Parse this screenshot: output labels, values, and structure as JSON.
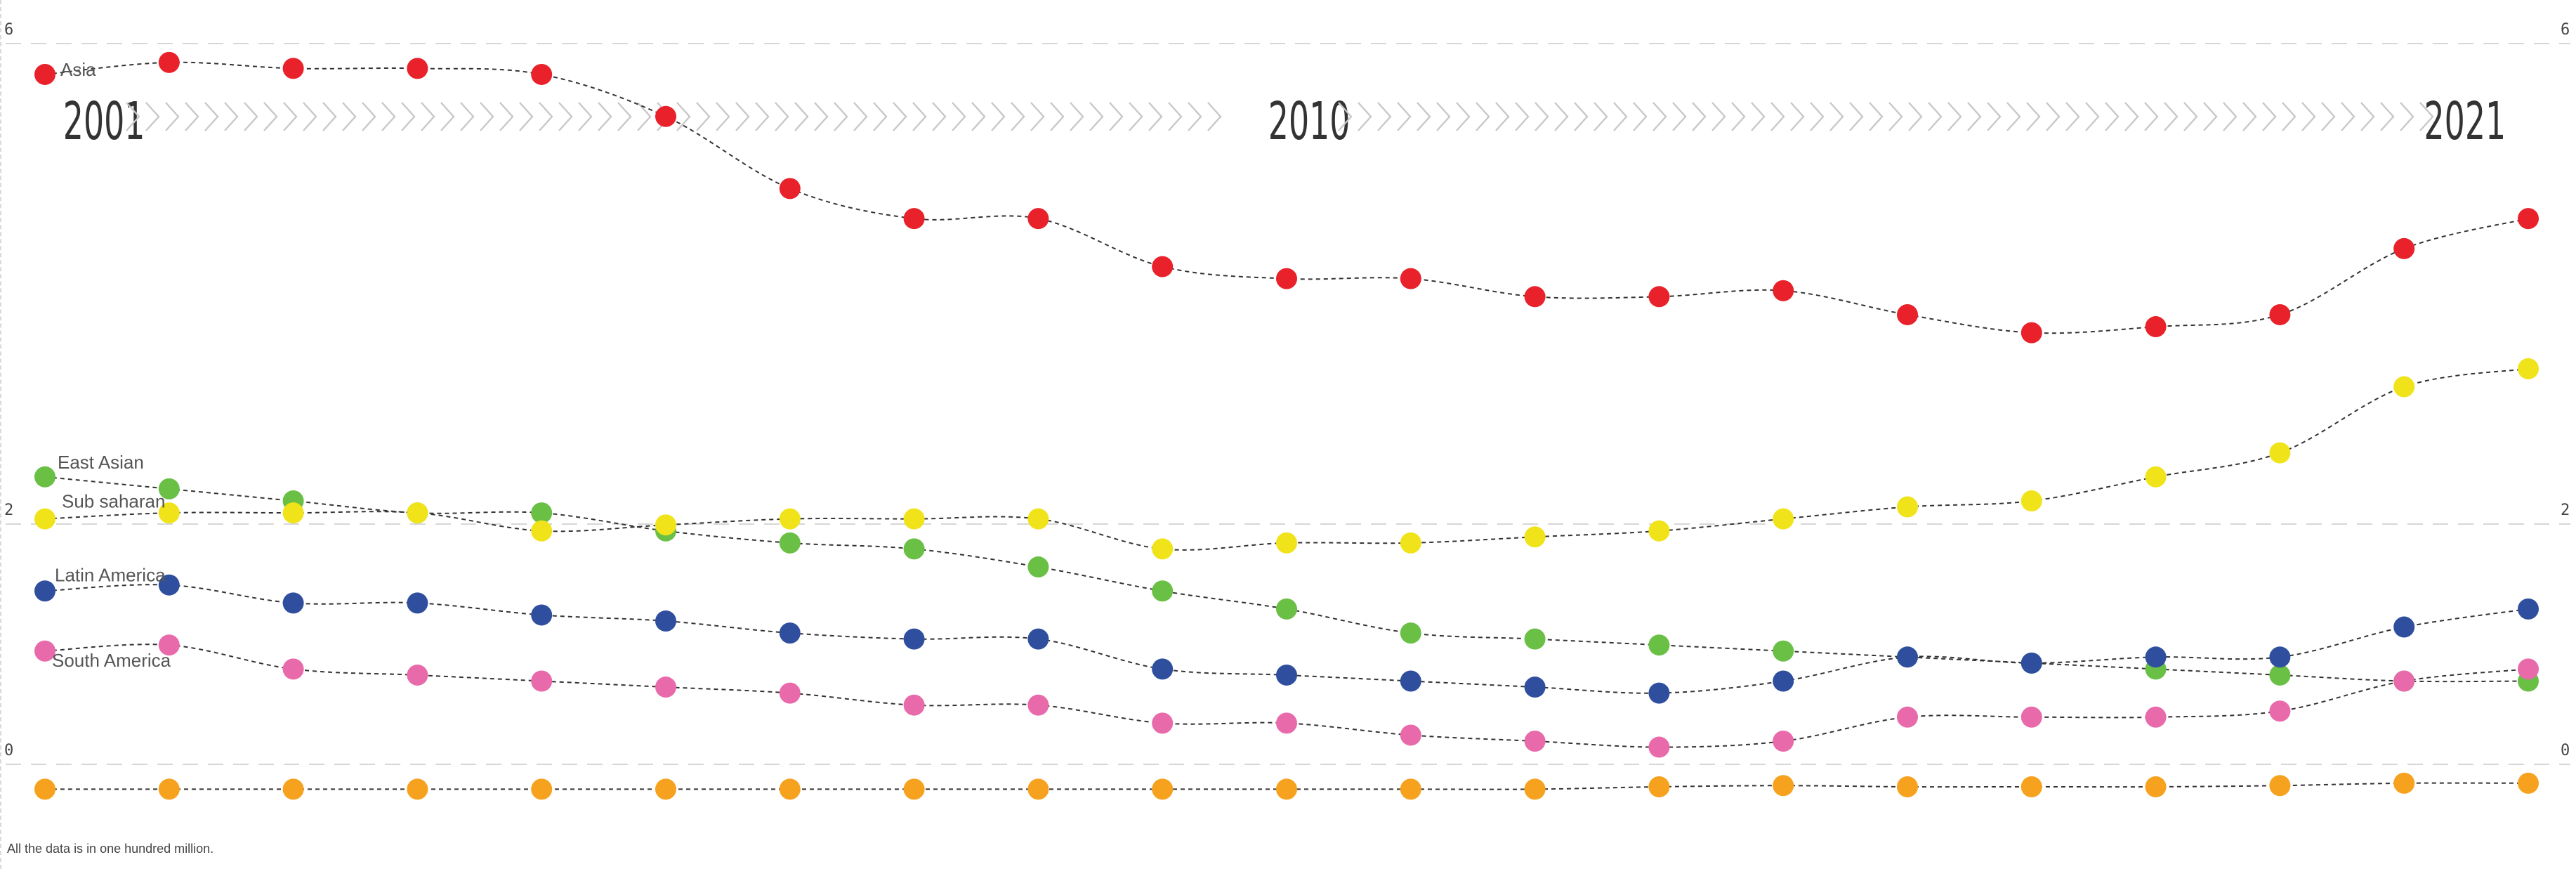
{
  "note": "All the data is in one hundred million.",
  "colors": {
    "Asia": "#e8212a",
    "East Asian": "#6abf45",
    "Sub saharan": "#f0e31a",
    "Latin America": "#2f4f9e",
    "South America": "#e96aaa",
    "unlabeled": "#f6a21e",
    "grid": "#d6d6d6",
    "chevron": "#c8c8c8",
    "connector": "#333333"
  },
  "chart_data": {
    "type": "line",
    "timeline_labels": [
      "2001",
      "2010",
      "2021"
    ],
    "x": [
      2001,
      2002,
      2003,
      2004,
      2005,
      2006,
      2007,
      2008,
      2009,
      2010,
      2011,
      2012,
      2013,
      2014,
      2015,
      2016,
      2017,
      2018,
      2019,
      2020,
      2021
    ],
    "ylim": [
      0,
      6
    ],
    "ytick_labels": [
      "0",
      "2",
      "6"
    ],
    "grid": "dashed horizontal",
    "series": [
      {
        "name": "Asia",
        "label": "Asia",
        "values": [
          5.55,
          5.65,
          5.6,
          5.6,
          5.55,
          5.2,
          4.6,
          4.35,
          4.35,
          3.95,
          3.85,
          3.85,
          3.7,
          3.7,
          3.75,
          3.55,
          3.4,
          3.45,
          3.55,
          4.1,
          4.35
        ]
      },
      {
        "name": "East Asian",
        "label": "East Asian",
        "values": [
          2.2,
          2.1,
          2.0,
          1.9,
          1.9,
          1.75,
          1.65,
          1.6,
          1.45,
          1.25,
          1.1,
          0.9,
          0.85,
          0.8,
          0.75,
          0.7,
          0.65,
          0.6,
          0.55,
          0.5,
          0.5
        ]
      },
      {
        "name": "Sub saharan",
        "label": "Sub saharan",
        "values": [
          1.85,
          1.9,
          1.9,
          1.9,
          1.75,
          1.8,
          1.85,
          1.85,
          1.85,
          1.6,
          1.65,
          1.65,
          1.7,
          1.75,
          1.85,
          1.95,
          2.0,
          2.2,
          2.4,
          2.95,
          3.1
        ]
      },
      {
        "name": "Latin America",
        "label": "Latin America",
        "values": [
          1.25,
          1.3,
          1.15,
          1.15,
          1.05,
          1.0,
          0.9,
          0.85,
          0.85,
          0.6,
          0.55,
          0.5,
          0.45,
          0.4,
          0.5,
          0.7,
          0.65,
          0.7,
          0.7,
          0.95,
          1.1
        ]
      },
      {
        "name": "South America",
        "label": "South America",
        "values": [
          0.75,
          0.8,
          0.6,
          0.55,
          0.5,
          0.45,
          0.4,
          0.3,
          0.3,
          0.15,
          0.15,
          0.05,
          0.0,
          -0.05,
          0.0,
          0.2,
          0.2,
          0.2,
          0.25,
          0.5,
          0.6
        ]
      },
      {
        "name": "",
        "label": "",
        "values": [
          -0.4,
          -0.4,
          -0.4,
          -0.4,
          -0.4,
          -0.4,
          -0.4,
          -0.4,
          -0.4,
          -0.4,
          -0.4,
          -0.4,
          -0.4,
          -0.38,
          -0.37,
          -0.38,
          -0.38,
          -0.38,
          -0.37,
          -0.35,
          -0.35
        ]
      }
    ]
  }
}
